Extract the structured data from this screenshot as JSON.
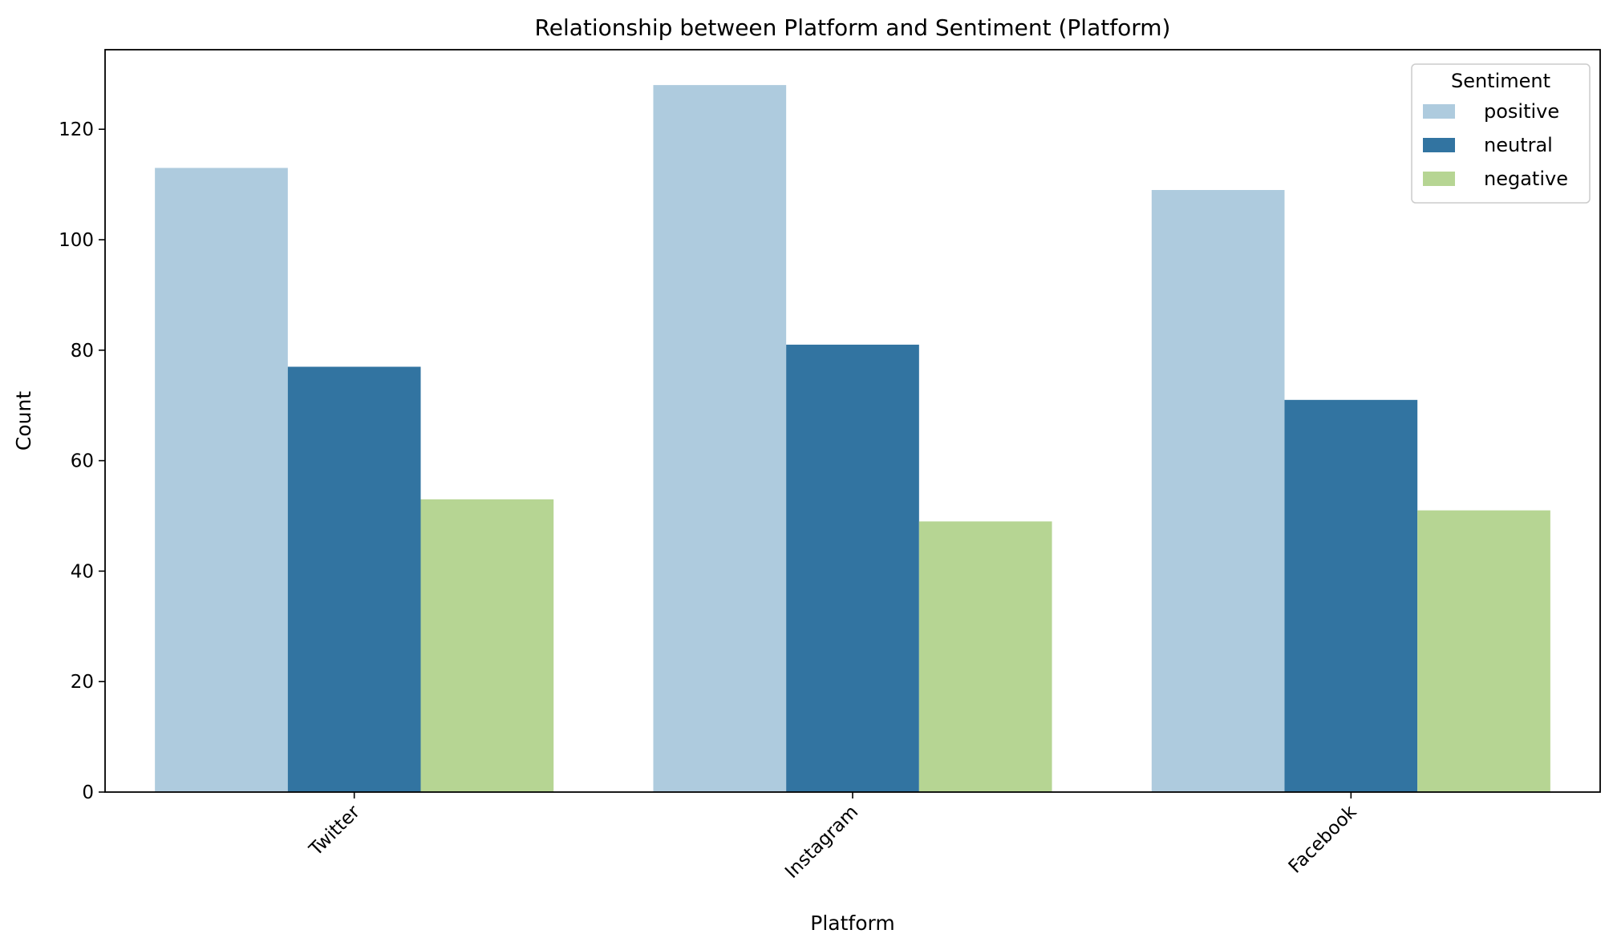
{
  "chart_data": {
    "type": "bar",
    "title": "Relationship between Platform and Sentiment (Platform)",
    "xlabel": "Platform",
    "ylabel": "Count",
    "categories": [
      "Twitter",
      "Instagram",
      "Facebook"
    ],
    "series": [
      {
        "name": "positive",
        "color": "#aecbde",
        "values": [
          113,
          128,
          109
        ]
      },
      {
        "name": "neutral",
        "color": "#3274a1",
        "values": [
          77,
          81,
          71
        ]
      },
      {
        "name": "negative",
        "color": "#b6d593",
        "values": [
          53,
          49,
          51
        ]
      }
    ],
    "ylim": [
      0,
      134.4
    ],
    "yticks": [
      0,
      20,
      40,
      60,
      80,
      100,
      120
    ],
    "legend": {
      "title": "Sentiment",
      "placement": "top-right"
    },
    "grid": false
  }
}
